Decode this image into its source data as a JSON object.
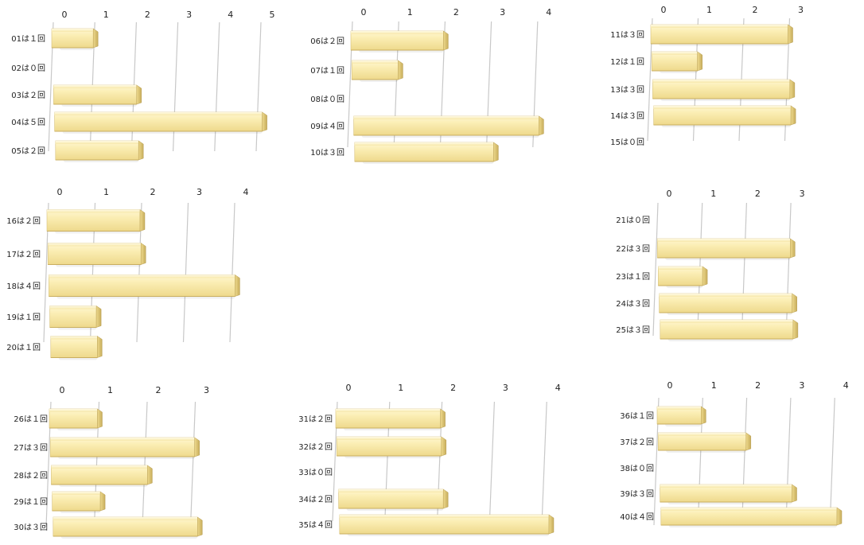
{
  "chart_data": [
    {
      "type": "bar",
      "orientation": "horizontal",
      "categories": [
        "01は１回",
        "02は０回",
        "03は２回",
        "04は５回",
        "05は２回"
      ],
      "values": [
        1,
        0,
        2,
        5,
        2
      ],
      "xlim": [
        0,
        5
      ],
      "ticks": [
        0,
        1,
        2,
        3,
        4,
        5
      ]
    },
    {
      "type": "bar",
      "orientation": "horizontal",
      "categories": [
        "06は２回",
        "07は１回",
        "08は０回",
        "09は４回",
        "10は３回"
      ],
      "values": [
        2,
        1,
        0,
        4,
        3
      ],
      "xlim": [
        0,
        4
      ],
      "ticks": [
        0,
        1,
        2,
        3,
        4
      ]
    },
    {
      "type": "bar",
      "orientation": "horizontal",
      "categories": [
        "11は３回",
        "12は１回",
        "13は３回",
        "14は３回",
        "15は０回"
      ],
      "values": [
        3,
        1,
        3,
        3,
        0
      ],
      "xlim": [
        0,
        3
      ],
      "ticks": [
        0,
        1,
        2,
        3
      ]
    },
    {
      "type": "bar",
      "orientation": "horizontal",
      "categories": [
        "16は２回",
        "17は２回",
        "18は４回",
        "19は１回",
        "20は１回"
      ],
      "values": [
        2,
        2,
        4,
        1,
        1
      ],
      "xlim": [
        0,
        4
      ],
      "ticks": [
        0,
        1,
        2,
        3,
        4
      ]
    },
    {
      "type": "bar",
      "orientation": "horizontal",
      "categories": [
        "21は０回",
        "22は３回",
        "23は１回",
        "24は３回",
        "25は３回"
      ],
      "values": [
        0,
        3,
        1,
        3,
        3
      ],
      "xlim": [
        0,
        3
      ],
      "ticks": [
        0,
        1,
        2,
        3
      ]
    },
    {
      "type": "bar",
      "orientation": "horizontal",
      "categories": [
        "26は１回",
        "27は３回",
        "28は２回",
        "29は１回",
        "30は３回"
      ],
      "values": [
        1,
        3,
        2,
        1,
        3
      ],
      "xlim": [
        0,
        3
      ],
      "ticks": [
        0,
        1,
        2,
        3
      ]
    },
    {
      "type": "bar",
      "orientation": "horizontal",
      "categories": [
        "31は２回",
        "32は２回",
        "33は０回",
        "34は２回",
        "35は４回"
      ],
      "values": [
        2,
        2,
        0,
        2,
        4
      ],
      "xlim": [
        0,
        4
      ],
      "ticks": [
        0,
        1,
        2,
        3,
        4
      ]
    },
    {
      "type": "bar",
      "orientation": "horizontal",
      "categories": [
        "36は１回",
        "37は２回",
        "38は０回",
        "39は３回",
        "40は４回"
      ],
      "values": [
        1,
        2,
        0,
        3,
        4
      ],
      "xlim": [
        0,
        4
      ],
      "ticks": [
        0,
        1,
        2,
        3,
        4
      ]
    }
  ],
  "colors": {
    "bar_light": "#fbeeb4",
    "bar_mid": "#eed98c",
    "bar_dark": "#c7ad5c",
    "grid": "#c8c8c8"
  }
}
